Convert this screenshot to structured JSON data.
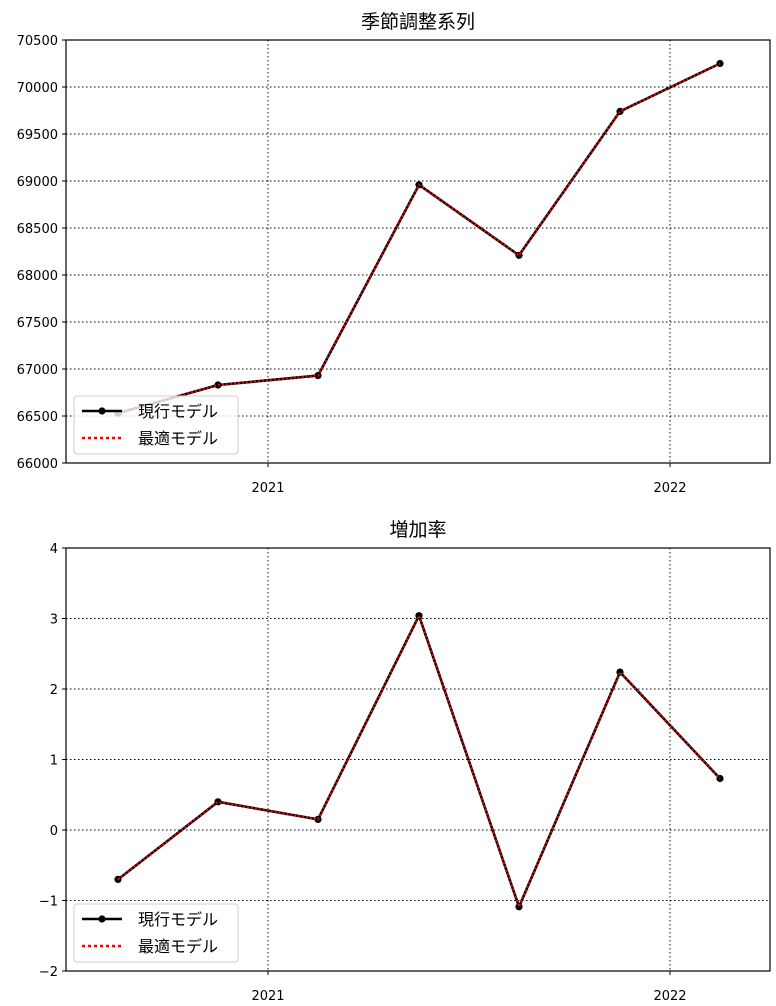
{
  "chart_data": [
    {
      "type": "line",
      "title": "季節調整系列",
      "xlabel": "",
      "ylabel": "",
      "x_tick_labels": [
        "2021",
        "2022"
      ],
      "y_tick_labels": [
        "66000",
        "66500",
        "67000",
        "67500",
        "68000",
        "68500",
        "69000",
        "69500",
        "70000",
        "70500"
      ],
      "ylim": [
        66000,
        70500
      ],
      "grid": true,
      "legend_placement": "lower-left",
      "series": [
        {
          "name": "現行モデル",
          "color": "#000000",
          "values": [
            66530,
            66830,
            66930,
            68960,
            68210,
            69740,
            70250
          ]
        },
        {
          "name": "最適モデル",
          "color": "#ff0000",
          "values": [
            66530,
            66830,
            66930,
            68960,
            68210,
            69740,
            70250
          ]
        }
      ]
    },
    {
      "type": "line",
      "title": "増加率",
      "xlabel": "",
      "ylabel": "",
      "x_tick_labels": [
        "2021",
        "2022"
      ],
      "y_tick_labels": [
        "−2",
        "−1",
        "0",
        "1",
        "2",
        "3",
        "4"
      ],
      "ylim": [
        -2,
        4
      ],
      "grid": true,
      "legend_placement": "lower-left",
      "series": [
        {
          "name": "現行モデル",
          "color": "#000000",
          "values": [
            -0.7,
            0.4,
            0.15,
            3.04,
            -1.09,
            2.24,
            0.73
          ]
        },
        {
          "name": "最適モデル",
          "color": "#ff0000",
          "values": [
            -0.7,
            0.4,
            0.15,
            3.04,
            -1.09,
            2.24,
            0.73
          ]
        }
      ]
    }
  ]
}
